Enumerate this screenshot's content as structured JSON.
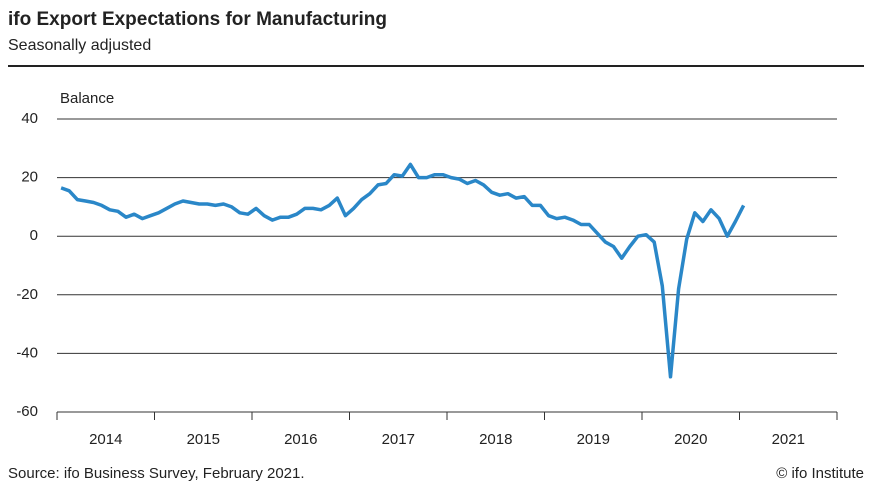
{
  "chart_data": {
    "type": "line",
    "title": "ifo Export Expectations for Manufacturing",
    "subtitle": "Seasonally adjusted",
    "y_label": "Balance",
    "source": "Source: ifo Business Survey, February 2021.",
    "credit": "© ifo Institute",
    "color": "#2a87c8",
    "grid": true,
    "xlim": [
      2014,
      2022
    ],
    "xticks": [
      {
        "value": 2014.5,
        "label": "2014"
      },
      {
        "value": 2015.5,
        "label": "2015"
      },
      {
        "value": 2016.5,
        "label": "2016"
      },
      {
        "value": 2017.5,
        "label": "2017"
      },
      {
        "value": 2018.5,
        "label": "2018"
      },
      {
        "value": 2019.5,
        "label": "2019"
      },
      {
        "value": 2020.5,
        "label": "2020"
      },
      {
        "value": 2021.5,
        "label": "2021"
      }
    ],
    "ylim": [
      -60,
      40
    ],
    "yticks": [
      40,
      20,
      0,
      -20,
      -40,
      -60
    ],
    "x": [
      2014.042,
      2014.125,
      2014.208,
      2014.292,
      2014.375,
      2014.458,
      2014.542,
      2014.625,
      2014.708,
      2014.792,
      2014.875,
      2014.958,
      2015.042,
      2015.125,
      2015.208,
      2015.292,
      2015.375,
      2015.458,
      2015.542,
      2015.625,
      2015.708,
      2015.792,
      2015.875,
      2015.958,
      2016.042,
      2016.125,
      2016.208,
      2016.292,
      2016.375,
      2016.458,
      2016.542,
      2016.625,
      2016.708,
      2016.792,
      2016.875,
      2016.958,
      2017.042,
      2017.125,
      2017.208,
      2017.292,
      2017.375,
      2017.458,
      2017.542,
      2017.625,
      2017.708,
      2017.792,
      2017.875,
      2017.958,
      2018.042,
      2018.125,
      2018.208,
      2018.292,
      2018.375,
      2018.458,
      2018.542,
      2018.625,
      2018.708,
      2018.792,
      2018.875,
      2018.958,
      2019.042,
      2019.125,
      2019.208,
      2019.292,
      2019.375,
      2019.458,
      2019.542,
      2019.625,
      2019.708,
      2019.792,
      2019.875,
      2019.958,
      2020.042,
      2020.125,
      2020.208,
      2020.292,
      2020.375,
      2020.458,
      2020.542,
      2020.625,
      2020.708,
      2020.792,
      2020.875,
      2020.958,
      2021.042
    ],
    "values": [
      16.5,
      15.5,
      12.5,
      12,
      11.5,
      10.5,
      9,
      8.5,
      6.5,
      7.5,
      6,
      7,
      8,
      9.5,
      11,
      12,
      11.5,
      11,
      11,
      10.5,
      11,
      10,
      8,
      7.5,
      9.5,
      7,
      5.5,
      6.5,
      6.5,
      7.5,
      9.5,
      9.5,
      9,
      10.5,
      13,
      7,
      9.5,
      12.5,
      14.5,
      17.5,
      18,
      21,
      20.5,
      24.5,
      20,
      20,
      21,
      21,
      20,
      19.5,
      18,
      19,
      17.5,
      15,
      14,
      14.5,
      13,
      13.5,
      10.5,
      10.5,
      7,
      6,
      6.5,
      5.5,
      4,
      4,
      1,
      -2,
      -3.5,
      -7.5,
      -3.5,
      0,
      0.5,
      -2,
      -17,
      -48,
      -18,
      -1,
      8,
      5,
      9,
      6,
      0,
      5,
      10.5
    ]
  }
}
